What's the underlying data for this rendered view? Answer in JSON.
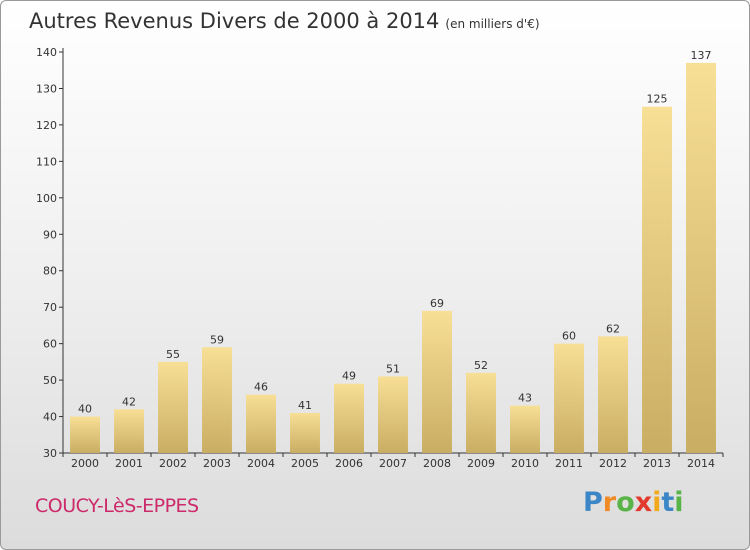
{
  "title": "Autres Revenus Divers de 2000 à 2014",
  "unit": "(en milliers d'€)",
  "commune": "COUCY-LèS-EPPES",
  "logo": {
    "letters": [
      {
        "char": "P",
        "color": "#3b86c6"
      },
      {
        "char": "r",
        "color": "#f08a24"
      },
      {
        "char": "o",
        "color": "#59b448"
      },
      {
        "char": "x",
        "color": "#e23b2e"
      },
      {
        "char": "i",
        "color": "#f2a91d"
      },
      {
        "char": "t",
        "color": "#3b86c6"
      },
      {
        "char": "i",
        "color": "#59b448"
      }
    ]
  },
  "colors": {
    "bar_light": "#f8df96",
    "bar_dark": "#c9ad63",
    "axis": "#333333",
    "grid": "#cccccc"
  },
  "chart_data": {
    "type": "bar",
    "categories": [
      "2000",
      "2001",
      "2002",
      "2003",
      "2004",
      "2005",
      "2006",
      "2007",
      "2008",
      "2009",
      "2010",
      "2011",
      "2012",
      "2013",
      "2014"
    ],
    "values": [
      40,
      42,
      55,
      59,
      46,
      41,
      49,
      51,
      69,
      52,
      43,
      60,
      62,
      125,
      137
    ],
    "ylim": [
      30,
      140
    ],
    "yticks": [
      30,
      40,
      50,
      60,
      70,
      80,
      90,
      100,
      110,
      120,
      130,
      140
    ],
    "grid": false,
    "data_labels": true
  }
}
